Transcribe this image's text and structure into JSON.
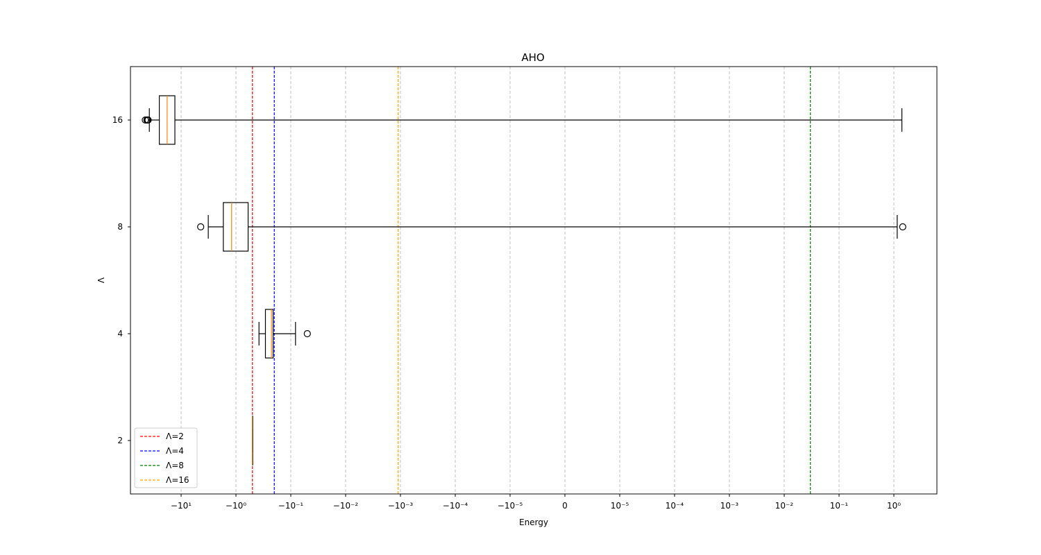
{
  "chart_data": {
    "type": "boxplot",
    "orientation": "horizontal",
    "title": "AHO",
    "xlabel": "Energy",
    "ylabel": "Λ",
    "x_scale": "symlog",
    "x_scale_linthresh": 1e-05,
    "grid": "x-only, dashed",
    "legend_position": "lower-left",
    "categories": [
      "2",
      "4",
      "8",
      "16"
    ],
    "x_ticks": [
      -10,
      -1,
      -0.1,
      -0.01,
      -0.001,
      -0.0001,
      -1e-05,
      0,
      1e-05,
      0.0001,
      0.001,
      0.01,
      0.1,
      1
    ],
    "x_tick_labels": [
      "−10¹",
      "−10⁰",
      "−10⁻¹",
      "−10⁻²",
      "−10⁻³",
      "−10⁻⁴",
      "−10⁻⁵",
      "0",
      "10⁻⁵",
      "10⁻⁴",
      "10⁻³",
      "10⁻²",
      "10⁻¹",
      "10⁰"
    ],
    "boxes": [
      {
        "category": "2",
        "whisker_low": -0.5,
        "q1": -0.5,
        "median": -0.5,
        "q3": -0.5,
        "whisker_high": -0.5,
        "outliers": []
      },
      {
        "category": "4",
        "whisker_low": -0.38,
        "q1": -0.29,
        "median": -0.225,
        "q3": -0.21,
        "whisker_high": -0.082,
        "outliers": [
          -0.05
        ]
      },
      {
        "category": "8",
        "whisker_low": -3.2,
        "q1": -1.7,
        "median": -1.2,
        "q3": -0.6,
        "whisker_high": 1.15,
        "outliers": [
          -4.4,
          1.45
        ]
      },
      {
        "category": "16",
        "whisker_low": -38,
        "q1": -25,
        "median": -18,
        "q3": -13,
        "whisker_high": 1.4,
        "outliers": [
          -40,
          -41,
          -42,
          -45
        ]
      }
    ],
    "reference_lines": [
      {
        "label": "Λ=2",
        "x": -0.5,
        "color": "#ff0000"
      },
      {
        "label": "Λ=4",
        "x": -0.2,
        "color": "#0000ff"
      },
      {
        "label": "Λ=8",
        "x": 0.03,
        "color": "#008000"
      },
      {
        "label": "Λ=16",
        "x": -0.0011,
        "color": "#ffa500"
      }
    ],
    "box_color": "#000000",
    "median_color": "#ff7f0e",
    "grid_color": "#b0b0b0"
  }
}
